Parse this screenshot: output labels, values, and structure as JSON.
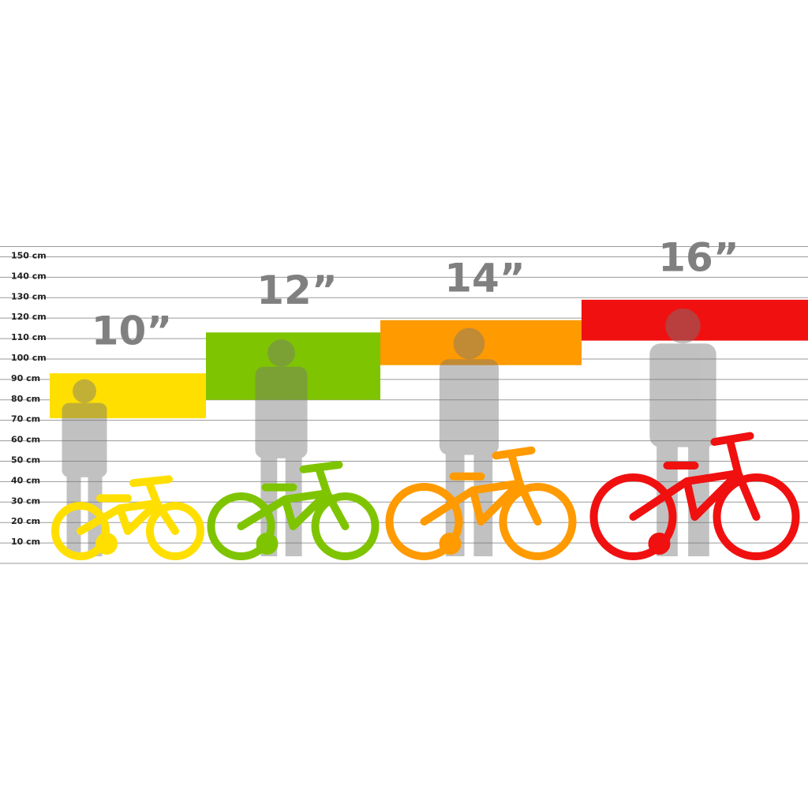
{
  "chart_data": {
    "type": "range",
    "categories": [
      "10”",
      "12”",
      "14”",
      "16”"
    ],
    "low": [
      71,
      80,
      97,
      109
    ],
    "high": [
      93,
      113,
      119,
      129
    ],
    "colors": [
      "#ffdf00",
      "#7fc400",
      "#ff9a00",
      "#f01010"
    ],
    "ylim": [
      0,
      155
    ],
    "yticks": [
      {
        "value": 10,
        "label": "10 cm"
      },
      {
        "value": 20,
        "label": "20 cm"
      },
      {
        "value": 30,
        "label": "30 cm"
      },
      {
        "value": 40,
        "label": "40 cm"
      },
      {
        "value": 50,
        "label": "50 cm"
      },
      {
        "value": 60,
        "label": "60 cm"
      },
      {
        "value": 70,
        "label": "70 cm"
      },
      {
        "value": 80,
        "label": "80 cm"
      },
      {
        "value": 90,
        "label": "90 cm"
      },
      {
        "value": 100,
        "label": "100 cm"
      },
      {
        "value": 110,
        "label": "110 cm"
      },
      {
        "value": 120,
        "label": "120 cm"
      },
      {
        "value": 130,
        "label": "130 cm"
      },
      {
        "value": 140,
        "label": "140 cm"
      },
      {
        "value": 150,
        "label": "150 cm"
      }
    ],
    "grid": true
  }
}
